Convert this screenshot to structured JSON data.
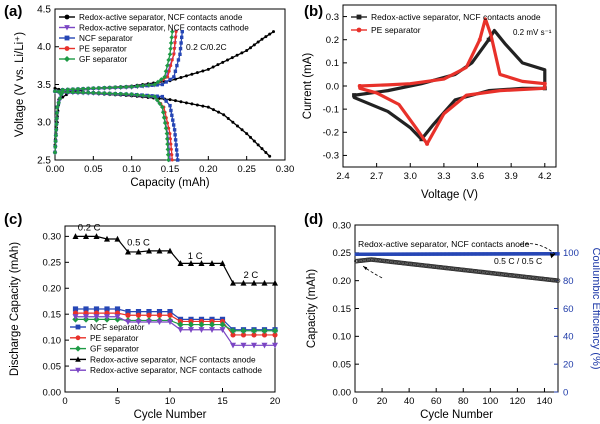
{
  "figure": {
    "panels": [
      "(a)",
      "(b)",
      "(c)",
      "(d)"
    ]
  },
  "chart_data": [
    {
      "panel": "(a)",
      "type": "line",
      "xlabel": "Capacity (mAh)",
      "ylabel": "Voltage (V vs. Li/Li⁺)",
      "xlim": [
        0.0,
        0.3
      ],
      "ylim": [
        2.5,
        4.5
      ],
      "xticks": [
        0.0,
        0.05,
        0.1,
        0.15,
        0.2,
        0.25,
        0.3
      ],
      "yticks": [
        2.5,
        3.0,
        3.5,
        4.0,
        4.5
      ],
      "xticklabels": [
        "0.00",
        "0.05",
        "0.10",
        "0.15",
        "0.20",
        "0.25",
        "0.30"
      ],
      "yticklabels": [
        "2.5",
        "3.0",
        "3.5",
        "4.0",
        "4.5"
      ],
      "annotation": "0.2 C/0.2C",
      "legend": "top-left",
      "series": [
        {
          "name": "Redox-active separator, NCF contacts anode",
          "color": "#000000",
          "marker": "circle",
          "charge": {
            "x": [
              0.0,
              0.005,
              0.02,
              0.05,
              0.1,
              0.15,
              0.2,
              0.25,
              0.27,
              0.285
            ],
            "y": [
              2.7,
              3.3,
              3.4,
              3.45,
              3.48,
              3.55,
              3.7,
              3.95,
              4.1,
              4.2
            ]
          },
          "discharge": {
            "x": [
              0.0,
              0.01,
              0.05,
              0.1,
              0.15,
              0.2,
              0.22,
              0.25,
              0.27,
              0.28
            ],
            "y": [
              3.45,
              3.42,
              3.38,
              3.35,
              3.3,
              3.2,
              3.1,
              2.85,
              2.65,
              2.55
            ]
          }
        },
        {
          "name": "Redox-active separator, NCF contacts cathode",
          "color": "#7b46c4",
          "marker": "triangle-down",
          "charge": {
            "x": [
              0.0,
              0.003,
              0.01,
              0.05,
              0.1,
              0.13,
              0.145,
              0.155,
              0.158
            ],
            "y": [
              2.6,
              3.2,
              3.42,
              3.44,
              3.46,
              3.49,
              3.6,
              3.9,
              4.2
            ]
          },
          "discharge": {
            "x": [
              0.0,
              0.01,
              0.05,
              0.1,
              0.13,
              0.14,
              0.147,
              0.15
            ],
            "y": [
              3.4,
              3.39,
              3.38,
              3.36,
              3.33,
              3.2,
              2.85,
              2.5
            ]
          }
        },
        {
          "name": "NCF separator",
          "color": "#2646b5",
          "marker": "square",
          "charge": {
            "x": [
              0.0,
              0.003,
              0.01,
              0.05,
              0.1,
              0.14,
              0.155,
              0.163,
              0.166
            ],
            "y": [
              2.6,
              3.2,
              3.43,
              3.45,
              3.47,
              3.5,
              3.6,
              3.9,
              4.2
            ]
          },
          "discharge": {
            "x": [
              0.0,
              0.01,
              0.05,
              0.1,
              0.14,
              0.15,
              0.156,
              0.16
            ],
            "y": [
              3.41,
              3.4,
              3.39,
              3.37,
              3.34,
              3.22,
              2.9,
              2.5
            ]
          }
        },
        {
          "name": "PE separator",
          "color": "#e8312a",
          "marker": "circle",
          "charge": {
            "x": [
              0.0,
              0.003,
              0.01,
              0.05,
              0.1,
              0.13,
              0.147,
              0.155,
              0.158
            ],
            "y": [
              2.6,
              3.2,
              3.43,
              3.45,
              3.47,
              3.5,
              3.6,
              3.9,
              4.2
            ]
          },
          "discharge": {
            "x": [
              0.0,
              0.01,
              0.05,
              0.1,
              0.13,
              0.142,
              0.15,
              0.153
            ],
            "y": [
              3.41,
              3.4,
              3.39,
              3.37,
              3.34,
              3.2,
              2.85,
              2.5
            ]
          }
        },
        {
          "name": "GF separator",
          "color": "#1e9a45",
          "marker": "diamond",
          "charge": {
            "x": [
              0.0,
              0.003,
              0.01,
              0.05,
              0.1,
              0.13,
              0.143,
              0.15,
              0.153
            ],
            "y": [
              2.6,
              3.2,
              3.43,
              3.45,
              3.47,
              3.5,
              3.6,
              3.9,
              4.2
            ]
          },
          "discharge": {
            "x": [
              0.0,
              0.01,
              0.05,
              0.1,
              0.13,
              0.14,
              0.146,
              0.148
            ],
            "y": [
              3.41,
              3.4,
              3.39,
              3.37,
              3.34,
              3.2,
              2.85,
              2.5
            ]
          }
        }
      ]
    },
    {
      "panel": "(b)",
      "type": "line",
      "xlabel": "Voltage (V)",
      "ylabel": "Current (mA)",
      "xlim": [
        2.4,
        4.3
      ],
      "ylim": [
        -0.35,
        0.35
      ],
      "xticks": [
        2.4,
        2.7,
        3.0,
        3.3,
        3.6,
        3.9,
        4.2
      ],
      "yticks": [
        -0.3,
        -0.2,
        -0.1,
        0.0,
        0.1,
        0.2,
        0.3
      ],
      "xticklabels": [
        "2.4",
        "2.7",
        "3.0",
        "3.3",
        "3.6",
        "3.9",
        "4.2"
      ],
      "yticklabels": [
        "-0.3",
        "-0.2",
        "-0.1",
        "0.0",
        "0.1",
        "0.2",
        "0.3"
      ],
      "annotation": "0.2 mV s⁻¹",
      "legend": "top-left",
      "series": [
        {
          "name": "Redox-active separator, NCF contacts anode",
          "color": "#222222",
          "marker": "square",
          "x": [
            2.5,
            2.8,
            3.1,
            3.4,
            3.55,
            3.7,
            3.75,
            3.85,
            4.0,
            4.2,
            4.2,
            4.0,
            3.7,
            3.4,
            3.2,
            3.1,
            3.0,
            2.8,
            2.6,
            2.5,
            2.5
          ],
          "y": [
            -0.04,
            -0.02,
            0.01,
            0.05,
            0.1,
            0.2,
            0.24,
            0.18,
            0.1,
            0.07,
            -0.01,
            -0.01,
            -0.02,
            -0.06,
            -0.17,
            -0.23,
            -0.18,
            -0.11,
            -0.07,
            -0.05,
            -0.04
          ]
        },
        {
          "name": "PE separator",
          "color": "#e8312a",
          "marker": "circle",
          "x": [
            2.55,
            2.8,
            3.0,
            3.3,
            3.5,
            3.62,
            3.67,
            3.72,
            3.8,
            4.0,
            4.2,
            4.2,
            3.8,
            3.5,
            3.3,
            3.15,
            3.05,
            2.9,
            2.7,
            2.55,
            2.55
          ],
          "y": [
            0.0,
            0.005,
            0.01,
            0.03,
            0.08,
            0.2,
            0.29,
            0.22,
            0.05,
            0.02,
            0.01,
            -0.01,
            -0.02,
            -0.04,
            -0.12,
            -0.25,
            -0.18,
            -0.08,
            -0.03,
            -0.01,
            0.0
          ]
        }
      ]
    },
    {
      "panel": "(c)",
      "type": "line",
      "xlabel": "Cycle Number",
      "ylabel": "Discharge Capacity (mAh)",
      "xlim": [
        0,
        20
      ],
      "ylim": [
        0.0,
        0.32
      ],
      "xticks": [
        0,
        5,
        10,
        15,
        20
      ],
      "yticks": [
        0.0,
        0.05,
        0.1,
        0.15,
        0.2,
        0.25,
        0.3
      ],
      "xticklabels": [
        "0",
        "5",
        "10",
        "15",
        "20"
      ],
      "yticklabels": [
        "0.00",
        "0.05",
        "0.10",
        "0.15",
        "0.20",
        "0.25",
        "0.30"
      ],
      "annotations": [
        {
          "text": "0.2 C",
          "x": 2.3,
          "y": 0.311
        },
        {
          "text": "0.5 C",
          "x": 7.0,
          "y": 0.282
        },
        {
          "text": "1 C",
          "x": 12.4,
          "y": 0.256
        },
        {
          "text": "2 C",
          "x": 17.7,
          "y": 0.22
        }
      ],
      "legend": "bottom-left",
      "x": [
        1,
        2,
        3,
        4,
        5,
        6,
        7,
        8,
        9,
        10,
        11,
        12,
        13,
        14,
        15,
        16,
        17,
        18,
        19,
        20
      ],
      "series": [
        {
          "name": "NCF separator",
          "color": "#2646b5",
          "marker": "square",
          "values": [
            0.16,
            0.16,
            0.16,
            0.16,
            0.16,
            0.155,
            0.155,
            0.155,
            0.155,
            0.155,
            0.14,
            0.14,
            0.14,
            0.14,
            0.14,
            0.12,
            0.12,
            0.12,
            0.12,
            0.12
          ]
        },
        {
          "name": "PE separator",
          "color": "#e8312a",
          "marker": "circle",
          "values": [
            0.152,
            0.152,
            0.152,
            0.152,
            0.152,
            0.148,
            0.148,
            0.148,
            0.148,
            0.148,
            0.136,
            0.136,
            0.136,
            0.136,
            0.136,
            0.11,
            0.11,
            0.11,
            0.11,
            0.11
          ]
        },
        {
          "name": "GF separator",
          "color": "#1e9a45",
          "marker": "diamond",
          "values": [
            0.14,
            0.14,
            0.14,
            0.14,
            0.14,
            0.138,
            0.138,
            0.138,
            0.138,
            0.138,
            0.13,
            0.13,
            0.13,
            0.13,
            0.13,
            0.118,
            0.118,
            0.118,
            0.118,
            0.118
          ]
        },
        {
          "name": "Redox-active separator, NCF contacts anode",
          "color": "#000000",
          "marker": "triangle-up",
          "values": [
            0.3,
            0.3,
            0.3,
            0.295,
            0.295,
            0.27,
            0.27,
            0.272,
            0.272,
            0.272,
            0.248,
            0.248,
            0.248,
            0.248,
            0.248,
            0.21,
            0.21,
            0.21,
            0.21,
            0.21
          ]
        },
        {
          "name": "Redox-active separator, NCF contacts cathode",
          "color": "#7b46c4",
          "marker": "triangle-down",
          "values": [
            0.145,
            0.145,
            0.145,
            0.145,
            0.145,
            0.135,
            0.135,
            0.135,
            0.135,
            0.135,
            0.12,
            0.12,
            0.12,
            0.12,
            0.12,
            0.09,
            0.09,
            0.09,
            0.09,
            0.09
          ]
        }
      ]
    },
    {
      "panel": "(d)",
      "type": "scatter",
      "xlabel": "Cycle Number",
      "ylabel": "Capacity (mAh)",
      "y2label": "Coulumbic Efficiency (%)",
      "xlim": [
        0,
        150
      ],
      "ylim": [
        0.0,
        0.3
      ],
      "y2lim": [
        0,
        120
      ],
      "xticks": [
        0,
        20,
        40,
        60,
        80,
        100,
        120,
        140
      ],
      "yticks": [
        0.0,
        0.05,
        0.1,
        0.15,
        0.2,
        0.25,
        0.3
      ],
      "y2ticks": [
        0,
        20,
        40,
        60,
        80,
        100
      ],
      "xticklabels": [
        "0",
        "20",
        "40",
        "60",
        "80",
        "100",
        "120",
        "140"
      ],
      "yticklabels": [
        "0.00",
        "0.05",
        "0.10",
        "0.15",
        "0.20",
        "0.25",
        "0.30"
      ],
      "y2ticklabels": [
        "0",
        "20",
        "40",
        "60",
        "80",
        "100"
      ],
      "series_label": "Redox-active separator, NCF contacts anode",
      "rate_label": "0.5 C / 0.5 C",
      "capacity": {
        "color": "#333333",
        "marker": "circle-open",
        "start": [
          1,
          0.235
        ],
        "peak": [
          12,
          0.238
        ],
        "end": [
          150,
          0.2
        ]
      },
      "efficiency": {
        "color": "#2646b5",
        "marker": "square",
        "start": [
          1,
          99.0
        ],
        "end": [
          150,
          99.3
        ]
      }
    }
  ]
}
